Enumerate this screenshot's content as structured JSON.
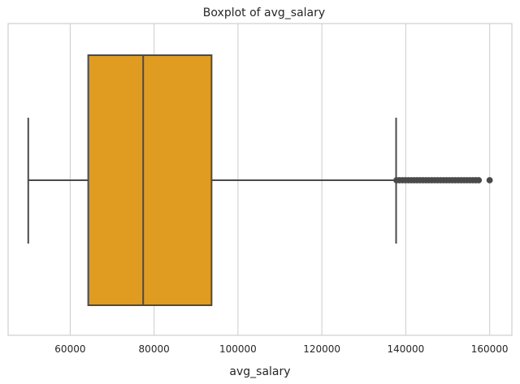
{
  "chart_data": {
    "type": "boxplot",
    "title": "Boxplot of avg_salary",
    "xlabel": "avg_salary",
    "ylabel": "",
    "orientation": "horizontal",
    "xlim": [
      45200,
      165300
    ],
    "xticks": [
      60000,
      80000,
      100000,
      120000,
      140000,
      160000
    ],
    "grid": "vertical",
    "box": {
      "whisker_low": 50000,
      "q1": 64300,
      "median": 77400,
      "q3": 93700,
      "whisker_high": 137700
    },
    "outliers_range": [
      137800,
      157700
    ],
    "outliers_extreme": [
      160000
    ],
    "colors": {
      "box_fill": "#e09c20",
      "line": "#4a4a4a",
      "grid": "#d0d0d0",
      "frame": "#cfcfcf"
    }
  }
}
